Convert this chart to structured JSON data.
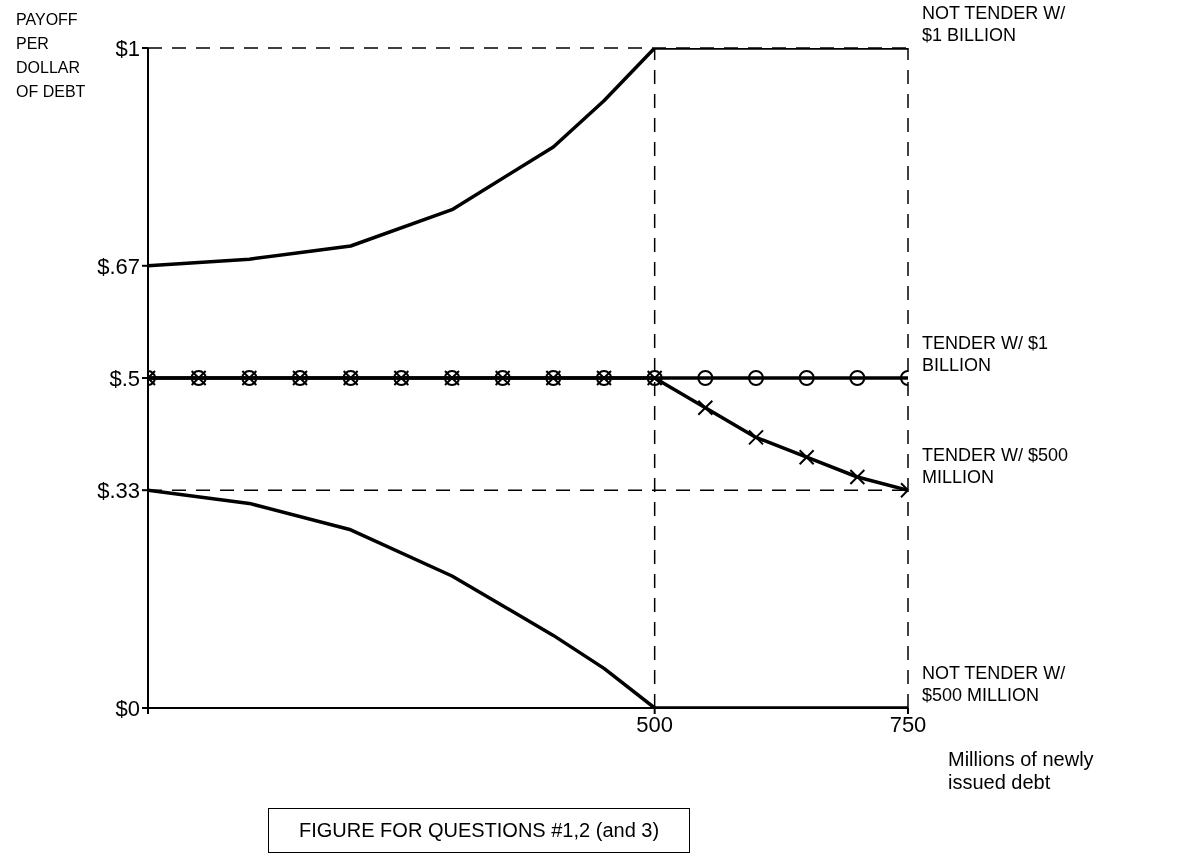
{
  "chart_data": {
    "type": "line",
    "xlabel": "Millions of newly issued debt",
    "ylabel": "PAYOFF PER DOLLAR OF DEBT",
    "xlim": [
      0,
      750
    ],
    "xticks": [
      {
        "value": 0,
        "label": null
      },
      500,
      750
    ],
    "ylim": [
      0,
      1
    ],
    "yticks": [
      {
        "value": 0,
        "label": "$0"
      },
      {
        "value": 0.33,
        "label": "$.33"
      },
      {
        "value": 0.5,
        "label": "$.5"
      },
      {
        "value": 0.67,
        "label": "$.67"
      },
      {
        "value": 1,
        "label": "$1"
      }
    ],
    "grid": false,
    "legend": "right",
    "line_style": "solid",
    "series": [
      {
        "name": "NOT TENDER W/ $1 BILLION",
        "color": "#000000",
        "marker": "none",
        "x": [
          0,
          100,
          200,
          300,
          400,
          450,
          500,
          750
        ],
        "values": [
          0.67,
          0.68,
          0.7,
          0.755,
          0.85,
          0.92,
          1,
          1
        ]
      },
      {
        "name": "TENDER W/ $1 BILLION",
        "color": "#000000",
        "marker": "circle",
        "x": [
          0,
          50,
          100,
          150,
          200,
          250,
          300,
          350,
          400,
          450,
          500,
          550,
          600,
          650,
          700,
          750
        ],
        "values": [
          0.5,
          0.5,
          0.5,
          0.5,
          0.5,
          0.5,
          0.5,
          0.5,
          0.5,
          0.5,
          0.5,
          0.5,
          0.5,
          0.5,
          0.5,
          0.5
        ]
      },
      {
        "name": "TENDER W/ $500 MILLION",
        "color": "#000000",
        "marker": "cross",
        "x": [
          0,
          50,
          100,
          150,
          200,
          250,
          300,
          350,
          400,
          450,
          500,
          550,
          600,
          650,
          700,
          750
        ],
        "values": [
          0.5,
          0.5,
          0.5,
          0.5,
          0.5,
          0.5,
          0.5,
          0.5,
          0.5,
          0.5,
          0.5,
          0.455,
          0.41,
          0.38,
          0.35,
          0.33
        ]
      },
      {
        "name": "NOT TENDER W/ $500 MILLION",
        "color": "#000000",
        "marker": "none",
        "x": [
          0,
          100,
          200,
          300,
          400,
          450,
          500,
          750
        ],
        "values": [
          0.33,
          0.31,
          0.27,
          0.2,
          0.11,
          0.06,
          0,
          0
        ]
      }
    ],
    "ref_lines": [
      {
        "axis": "x",
        "value": 500,
        "line_style": "dashed"
      },
      {
        "axis": "x",
        "value": 750,
        "line_style": "dashed"
      },
      {
        "axis": "y",
        "value": 1,
        "line_style": "dashed"
      },
      {
        "axis": "y",
        "value": 0.33,
        "line_style": "dashed"
      }
    ],
    "annotations": [
      "FIGURE FOR QUESTIONS #1,2 (and 3)"
    ]
  }
}
